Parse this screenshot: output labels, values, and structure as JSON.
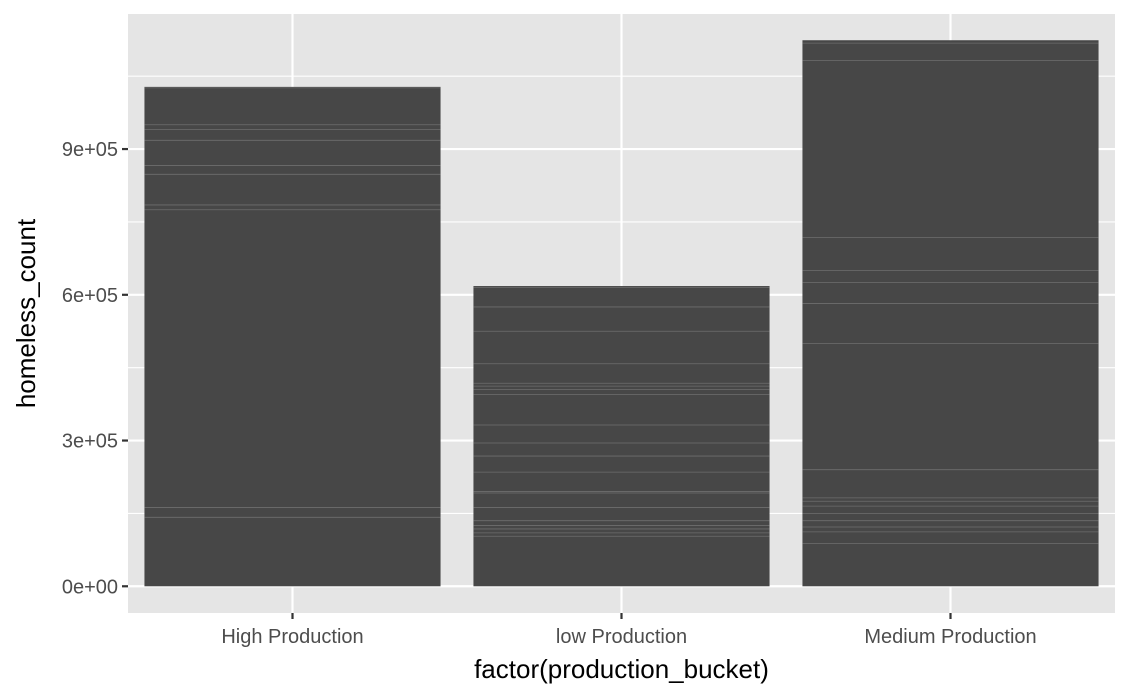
{
  "chart_data": {
    "type": "bar",
    "xlabel": "factor(production_bucket)",
    "ylabel": "homeless_count",
    "categories": [
      "High Production",
      "low Production",
      "Medium Production"
    ],
    "values": [
      1028000,
      618000,
      1124000
    ],
    "ylim": [
      -55000,
      1178000
    ],
    "yticks": [
      0,
      300000,
      600000,
      900000
    ],
    "ytick_labels": [
      "0e+00",
      "3e+05",
      "6e+05",
      "9e+05"
    ],
    "stack_boundaries": [
      [
        1026000,
        950000,
        940000,
        918000,
        866000,
        848000,
        785000,
        775000,
        162000,
        142000
      ],
      [
        615000,
        575000,
        525000,
        458000,
        418000,
        412000,
        405000,
        395000,
        332000,
        295000,
        268000,
        235000,
        195000,
        192000,
        162000,
        135000,
        125000,
        118000,
        110000,
        103000
      ],
      [
        1118000,
        1082000,
        718000,
        650000,
        625000,
        582000,
        500000,
        240000,
        182000,
        175000,
        165000,
        150000,
        135000,
        122000,
        112000,
        88000
      ]
    ],
    "grid": true,
    "colors": {
      "panel_bg": "#e5e5e5",
      "grid": "#ffffff",
      "bar_fill": "#474747",
      "stack_line": "#6e6e6e",
      "tick_text": "#4d4d4d",
      "tick_mark": "#333333",
      "axis_title": "#000000"
    }
  }
}
